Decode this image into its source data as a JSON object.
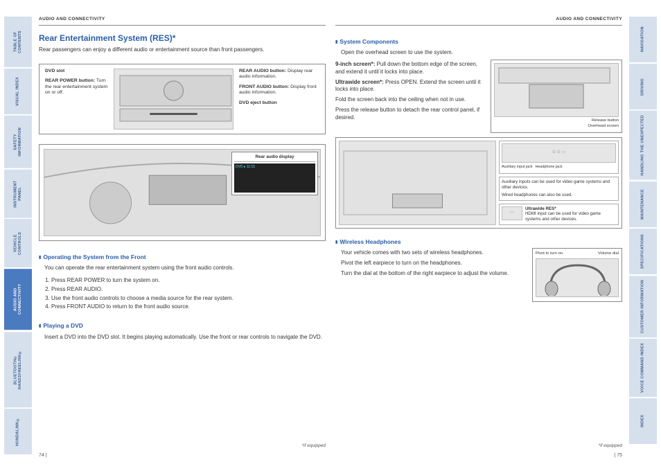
{
  "header": {
    "section": "AUDIO AND CONNECTIVITY"
  },
  "tabs_left": [
    {
      "label": "TABLE OF CONTENTS",
      "active": false
    },
    {
      "label": "VISUAL INDEX",
      "active": false
    },
    {
      "label": "SAFETY INFORMATION",
      "active": false
    },
    {
      "label": "INSTRUMENT PANEL",
      "active": false
    },
    {
      "label": "VEHICLE CONTROLS",
      "active": false
    },
    {
      "label": "AUDIO AND CONNECTIVITY",
      "active": true
    },
    {
      "label": "BLUETOOTH® HANDSFREELINK®",
      "active": false,
      "italic": true
    },
    {
      "label": "HONDALINK®",
      "active": false
    }
  ],
  "tabs_right": [
    {
      "label": "NAVIGATION",
      "active": false
    },
    {
      "label": "DRIVING",
      "active": false
    },
    {
      "label": "HANDLING THE UNEXPECTED",
      "active": false
    },
    {
      "label": "MAINTENANCE",
      "active": false
    },
    {
      "label": "SPECIFICATIONS",
      "active": false
    },
    {
      "label": "CUSTOMER INFORMATION",
      "active": false
    },
    {
      "label": "VOICE COMMAND INDEX",
      "active": false
    },
    {
      "label": "INDEX",
      "active": false
    }
  ],
  "left_page": {
    "title": "Rear Entertainment System (RES)*",
    "intro": "Rear passengers can enjoy a different audio or entertainment source than front passengers.",
    "fig1": {
      "left": [
        {
          "lbl": "DVD slot",
          "txt": ""
        },
        {
          "lbl": "REAR POWER button:",
          "txt": "Turn the rear entertainment system on or off."
        }
      ],
      "right": [
        {
          "lbl": "REAR AUDIO button:",
          "txt": "Display rear audio information."
        },
        {
          "lbl": "FRONT AUDIO button:",
          "txt": "Display front audio information."
        },
        {
          "lbl": "DVD eject button",
          "txt": ""
        }
      ]
    },
    "fig2_label": "Rear audio display",
    "sub1": "Operating the System from the Front",
    "sub1_text": "You can operate the rear entertainment system using the front audio controls.",
    "steps": [
      "Press REAR POWER to turn the system on.",
      "Press REAR AUDIO.",
      "Use the front audio controls to choose a media source for the rear system.",
      "Press FRONT AUDIO to return to the front audio source."
    ],
    "sub2": "Playing a DVD",
    "sub2_text": "Insert a DVD into the DVD slot. It begins playing automatically. Use the front or rear controls to navigate the DVD.",
    "footnote": "*if equipped",
    "page_num": "74  |"
  },
  "right_page": {
    "sub1": "System Components",
    "sub1_text": "Open the overhead screen to use the system.",
    "para1_lbl": "9-inch screen*:",
    "para1_txt": " Pull down the bottom edge of the screen, and extend it until it locks into place.",
    "para2_lbl": "Ultrawide screen*:",
    "para2_txt": " Press OPEN. Extend the screen until it locks into place.",
    "para3": "Fold the screen back into the ceiling when not in use.",
    "para4": "Press the release button to detach the rear control panel, if desired.",
    "overhead_labels": {
      "a": "Release button",
      "b": "Overhead screen"
    },
    "aux": {
      "aux_lbl1": "Auxiliary input jack",
      "aux_lbl2": "Headphone jack",
      "txt1": "Auxiliary inputs can be used for video game systems and other devices.",
      "txt2": "Wired headphones can also be used.",
      "ultra_lbl": "Ultrawide RES*",
      "ultra_txt": "HDMI input can be used for video game systems and other devices."
    },
    "sub2": "Wireless Headphones",
    "wh1": "Your vehicle comes with two sets of wireless headphones.",
    "wh2": "Pivot the left earpiece to turn on the headphones.",
    "wh3": "Turn the dial at the bottom of the right earpiece to adjust the volume.",
    "hp_labels": {
      "a": "Pivot to turn on.",
      "b": "Volume dial"
    },
    "footnote": "*if equipped",
    "page_num": "|  75"
  }
}
